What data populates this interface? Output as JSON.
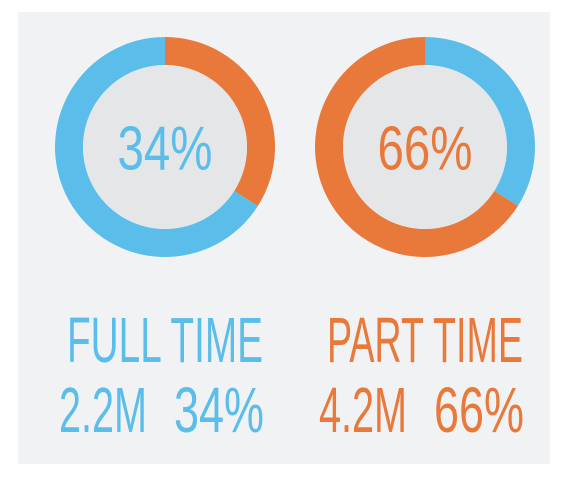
{
  "chart_data": [
    {
      "type": "donut",
      "title": "FULL TIME",
      "categories": [
        null,
        null
      ],
      "values": [
        34,
        66
      ],
      "value_labels": [
        "34%",
        null
      ],
      "colors": [
        "#e8793a",
        "#5bbdea"
      ],
      "text_color": "#5bbdea",
      "count": {
        "value": 2200000,
        "label": "2.2M"
      }
    },
    {
      "type": "donut",
      "title": "PART TIME",
      "categories": [
        null,
        null
      ],
      "values": [
        34,
        66
      ],
      "value_labels": [
        null,
        "66%"
      ],
      "colors": [
        "#5bbdea",
        "#e8793a"
      ],
      "text_color": "#e8793a",
      "count": {
        "value": 4200000,
        "label": "4.2M"
      }
    }
  ]
}
